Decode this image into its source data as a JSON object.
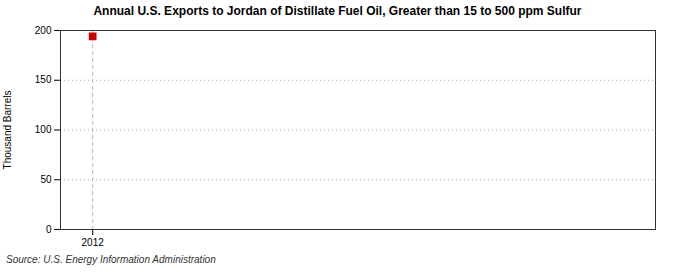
{
  "chart_data": {
    "type": "scatter",
    "title": "Annual U.S. Exports to Jordan of Distillate Fuel Oil, Greater than 15 to 500 ppm Sulfur",
    "ylabel": "Thousand Barrels",
    "source": "Source: U.S. Energy Information Administration",
    "x": [
      2012
    ],
    "values": [
      194
    ],
    "color": "#cc0000",
    "marker": "square",
    "xlim": [
      2011.4,
      2022.5
    ],
    "xticks": [
      2012
    ],
    "ylim": [
      0,
      200
    ],
    "yticks": [
      0,
      50,
      100,
      150,
      200
    ],
    "grid": true
  }
}
